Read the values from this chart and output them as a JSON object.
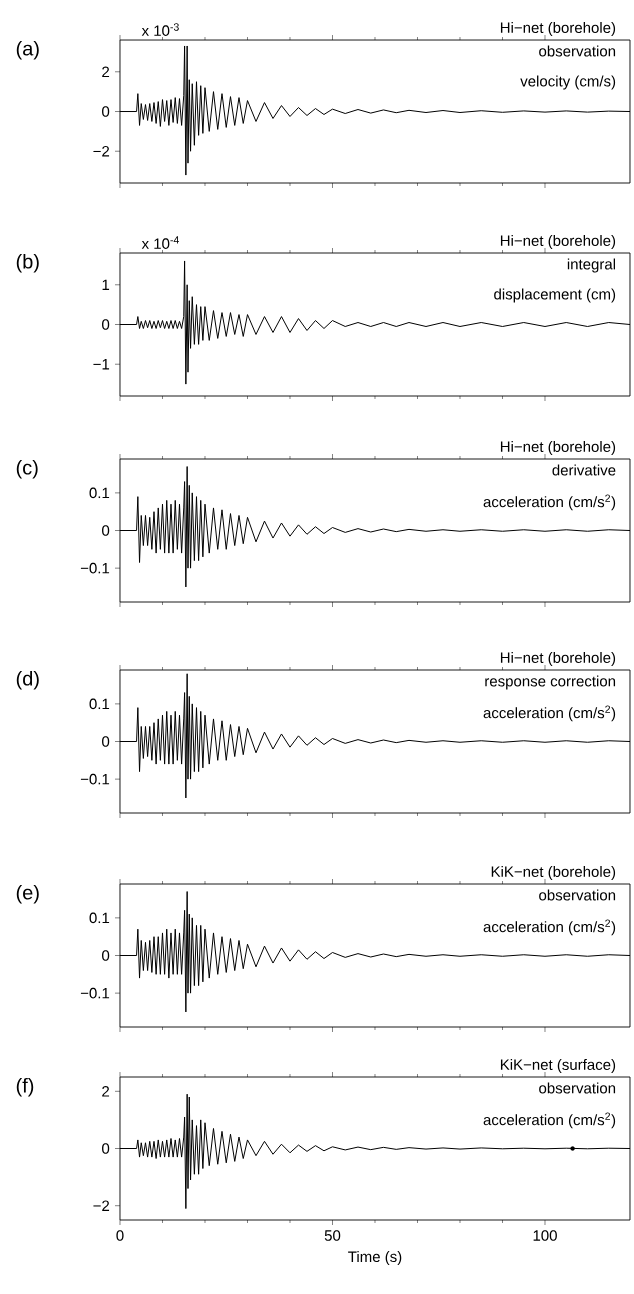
{
  "chart_data": [
    {
      "type": "line",
      "title": "(a)",
      "subtitle": "Hi−net (borehole)",
      "ylabel": "x 10$^{-3}$",
      "annotations": [
        "observation",
        "velocity (cm/s)"
      ],
      "xlim": [
        0,
        120
      ],
      "xticks": [
        0,
        50,
        100
      ],
      "ylim": [
        -3.6,
        3.6
      ],
      "yticks": [
        {
          "value": -2,
          "label": "−2"
        },
        0,
        2
      ],
      "tick_labels": "y",
      "x": [
        0,
        3.9,
        4.2,
        4.6,
        5,
        5.5,
        6,
        6.5,
        7,
        7.5,
        8,
        8.5,
        9,
        9.5,
        10,
        10.5,
        11,
        11.5,
        12,
        12.5,
        13,
        13.5,
        14,
        14.5,
        15,
        15.2,
        15.5,
        15.8,
        16,
        16.3,
        16.6,
        17,
        17.5,
        18,
        18.5,
        19,
        19.5,
        20,
        21,
        22,
        23,
        24,
        25,
        26,
        27,
        28,
        29,
        30,
        32,
        34,
        36,
        38,
        40,
        42,
        44,
        46,
        48,
        50,
        53,
        56,
        59,
        62,
        65,
        68,
        72,
        76,
        80,
        85,
        90,
        95,
        100,
        105,
        110,
        115,
        120
      ],
      "series": [
        {
          "color": "#000000",
          "values": [
            0,
            0,
            0.9,
            -0.7,
            0.4,
            -0.4,
            0.35,
            -0.45,
            0.4,
            -0.5,
            0.45,
            -0.6,
            0.5,
            -0.75,
            0.6,
            -0.5,
            0.55,
            -0.7,
            0.6,
            -0.55,
            0.7,
            -0.6,
            0.65,
            -0.7,
            0.8,
            3.3,
            -3.2,
            3.3,
            -2.6,
            1.6,
            -2.0,
            1.4,
            -1.7,
            1.5,
            -1.2,
            1.3,
            -1.1,
            1.2,
            -1.0,
            1.0,
            -0.9,
            0.9,
            -0.8,
            0.75,
            -0.7,
            0.7,
            -0.6,
            0.55,
            -0.5,
            0.45,
            -0.35,
            0.3,
            -0.25,
            0.2,
            -0.2,
            0.15,
            -0.15,
            0.12,
            -0.1,
            0.1,
            -0.08,
            0.08,
            -0.06,
            0.06,
            -0.05,
            0.05,
            -0.05,
            0.04,
            -0.04,
            0.03,
            -0.03,
            0.03,
            -0.03,
            0.02,
            0
          ]
        }
      ]
    },
    {
      "type": "line",
      "title": "(b)",
      "subtitle": "Hi−net (borehole)",
      "ylabel": "x 10$^{-4}$",
      "annotations": [
        "integral",
        "displacement (cm)"
      ],
      "xlim": [
        0,
        120
      ],
      "xticks": [
        0,
        50,
        100
      ],
      "ylim": [
        -1.8,
        1.8
      ],
      "yticks": [
        {
          "value": -1,
          "label": "−1"
        },
        0,
        1
      ],
      "tick_labels": "y",
      "x": [
        0,
        3.9,
        4.2,
        4.6,
        5,
        5.5,
        6,
        6.5,
        7,
        7.5,
        8,
        8.5,
        9,
        9.5,
        10,
        10.5,
        11,
        11.5,
        12,
        12.5,
        13,
        13.5,
        14,
        14.5,
        15,
        15.2,
        15.5,
        15.8,
        16,
        16.3,
        16.6,
        17,
        17.5,
        18,
        18.5,
        19,
        19.5,
        20,
        21,
        22,
        23,
        24,
        25,
        26,
        27,
        28,
        29,
        30,
        32,
        34,
        36,
        38,
        40,
        42,
        44,
        46,
        48,
        50,
        53,
        56,
        59,
        62,
        65,
        68,
        72,
        76,
        80,
        85,
        90,
        95,
        100,
        105,
        110,
        115,
        120
      ],
      "series": [
        {
          "color": "#000000",
          "values": [
            0,
            0,
            0.2,
            -0.1,
            0.08,
            -0.1,
            0.1,
            -0.08,
            0.1,
            -0.1,
            0.08,
            -0.1,
            0.1,
            -0.08,
            0.1,
            -0.1,
            0.08,
            -0.1,
            0.1,
            -0.1,
            0.1,
            -0.1,
            0.08,
            -0.1,
            0.2,
            1.6,
            -1.5,
            1.0,
            -1.2,
            0.6,
            -0.6,
            0.7,
            -0.5,
            0.5,
            -0.5,
            0.45,
            -0.4,
            0.45,
            -0.4,
            0.35,
            -0.35,
            0.3,
            -0.3,
            0.3,
            -0.25,
            0.25,
            -0.3,
            0.25,
            -0.25,
            0.2,
            -0.2,
            0.2,
            -0.2,
            0.15,
            -0.15,
            0.1,
            -0.1,
            0.1,
            -0.05,
            0.05,
            -0.05,
            0.05,
            -0.05,
            0.05,
            -0.05,
            0.05,
            -0.05,
            0.05,
            -0.05,
            0.05,
            -0.05,
            0.05,
            -0.05,
            0.05,
            0
          ]
        }
      ]
    },
    {
      "type": "line",
      "title": "(c)",
      "subtitle": "Hi−net (borehole)",
      "annotations": [
        "derivative",
        "acceleration (cm/s$^{2}$)"
      ],
      "xlim": [
        0,
        120
      ],
      "xticks": [
        0,
        50,
        100
      ],
      "ylim": [
        -0.19,
        0.19
      ],
      "yticks": [
        {
          "value": -0.1,
          "label": "−0.1"
        },
        0,
        0.1
      ],
      "tick_labels": "y",
      "x": [
        0,
        3.9,
        4.2,
        4.6,
        5,
        5.5,
        6,
        6.5,
        7,
        7.5,
        8,
        8.5,
        9,
        9.5,
        10,
        10.5,
        11,
        11.5,
        12,
        12.5,
        13,
        13.5,
        14,
        14.5,
        15,
        15.2,
        15.5,
        15.8,
        16,
        16.3,
        16.6,
        17,
        17.5,
        18,
        18.5,
        19,
        19.5,
        20,
        21,
        22,
        23,
        24,
        25,
        26,
        27,
        28,
        29,
        30,
        32,
        34,
        36,
        38,
        40,
        42,
        44,
        46,
        48,
        50,
        53,
        56,
        59,
        62,
        65,
        68,
        72,
        76,
        80,
        85,
        90,
        95,
        100,
        105,
        110,
        115,
        120
      ],
      "series": [
        {
          "color": "#000000",
          "values": [
            0,
            0,
            0.09,
            -0.085,
            0.04,
            -0.04,
            0.04,
            -0.04,
            0.035,
            -0.05,
            0.05,
            -0.06,
            0.06,
            -0.05,
            0.07,
            -0.06,
            0.08,
            -0.06,
            0.07,
            -0.06,
            0.08,
            -0.05,
            0.07,
            -0.06,
            0.06,
            0.13,
            -0.15,
            0.17,
            -0.1,
            0.12,
            -0.1,
            0.1,
            -0.08,
            0.09,
            -0.08,
            0.08,
            -0.07,
            0.07,
            -0.06,
            0.06,
            -0.05,
            0.055,
            -0.05,
            0.045,
            -0.04,
            0.04,
            -0.035,
            0.035,
            -0.03,
            0.025,
            -0.02,
            0.02,
            -0.015,
            0.015,
            -0.01,
            0.01,
            -0.008,
            0.008,
            -0.005,
            0.005,
            -0.004,
            0.004,
            -0.003,
            0.003,
            -0.002,
            0.002,
            -0.002,
            0.002,
            -0.002,
            0.002,
            -0.002,
            0.002,
            -0.002,
            0.002,
            0
          ]
        }
      ]
    },
    {
      "type": "line",
      "title": "(d)",
      "subtitle": "Hi−net (borehole)",
      "annotations": [
        "response correction",
        "acceleration (cm/s$^{2}$)"
      ],
      "xlim": [
        0,
        120
      ],
      "xticks": [
        0,
        50,
        100
      ],
      "ylim": [
        -0.19,
        0.19
      ],
      "yticks": [
        {
          "value": -0.1,
          "label": "−0.1"
        },
        0,
        0.1
      ],
      "tick_labels": "y",
      "x": [
        0,
        3.9,
        4.2,
        4.6,
        5,
        5.5,
        6,
        6.5,
        7,
        7.5,
        8,
        8.5,
        9,
        9.5,
        10,
        10.5,
        11,
        11.5,
        12,
        12.5,
        13,
        13.5,
        14,
        14.5,
        15,
        15.2,
        15.5,
        15.8,
        16,
        16.3,
        16.6,
        17,
        17.5,
        18,
        18.5,
        19,
        19.5,
        20,
        21,
        22,
        23,
        24,
        25,
        26,
        27,
        28,
        29,
        30,
        32,
        34,
        36,
        38,
        40,
        42,
        44,
        46,
        48,
        50,
        53,
        56,
        59,
        62,
        65,
        68,
        72,
        76,
        80,
        85,
        90,
        95,
        100,
        105,
        110,
        115,
        120
      ],
      "series": [
        {
          "color": "#000000",
          "values": [
            0,
            0,
            0.09,
            -0.08,
            0.04,
            -0.045,
            0.04,
            -0.04,
            0.04,
            -0.05,
            0.05,
            -0.06,
            0.06,
            -0.05,
            0.07,
            -0.06,
            0.08,
            -0.06,
            0.07,
            -0.06,
            0.08,
            -0.05,
            0.07,
            -0.06,
            0.06,
            0.13,
            -0.15,
            0.18,
            -0.1,
            0.12,
            -0.1,
            0.1,
            -0.08,
            0.09,
            -0.08,
            0.08,
            -0.07,
            0.07,
            -0.06,
            0.06,
            -0.05,
            0.055,
            -0.05,
            0.045,
            -0.04,
            0.04,
            -0.035,
            0.035,
            -0.03,
            0.025,
            -0.02,
            0.02,
            -0.015,
            0.015,
            -0.01,
            0.01,
            -0.008,
            0.008,
            -0.005,
            0.005,
            -0.004,
            0.004,
            -0.003,
            0.003,
            -0.002,
            0.002,
            -0.002,
            0.002,
            -0.002,
            0.002,
            -0.002,
            0.002,
            -0.002,
            0.002,
            0
          ]
        }
      ]
    },
    {
      "type": "line",
      "title": "(e)",
      "subtitle": "KiK−net (borehole)",
      "annotations": [
        "observation",
        "acceleration (cm/s$^{2}$)"
      ],
      "xlim": [
        0,
        120
      ],
      "xticks": [
        0,
        50,
        100
      ],
      "ylim": [
        -0.19,
        0.19
      ],
      "yticks": [
        {
          "value": -0.1,
          "label": "−0.1"
        },
        0,
        0.1
      ],
      "tick_labels": "y",
      "x": [
        0,
        3.9,
        4.2,
        4.6,
        5,
        5.5,
        6,
        6.5,
        7,
        7.5,
        8,
        8.5,
        9,
        9.5,
        10,
        10.5,
        11,
        11.5,
        12,
        12.5,
        13,
        13.5,
        14,
        14.5,
        15,
        15.2,
        15.5,
        15.8,
        16,
        16.3,
        16.6,
        17,
        17.5,
        18,
        18.5,
        19,
        19.5,
        20,
        21,
        22,
        23,
        24,
        25,
        26,
        27,
        28,
        29,
        30,
        32,
        34,
        36,
        38,
        40,
        42,
        44,
        46,
        48,
        50,
        53,
        56,
        59,
        62,
        65,
        68,
        72,
        76,
        80,
        85,
        90,
        95,
        100,
        105,
        110,
        115,
        120
      ],
      "series": [
        {
          "color": "#000000",
          "values": [
            0,
            0,
            0.07,
            -0.06,
            0.04,
            -0.04,
            0.035,
            -0.04,
            0.04,
            -0.045,
            0.05,
            -0.05,
            0.05,
            -0.05,
            0.06,
            -0.05,
            0.07,
            -0.06,
            0.06,
            -0.05,
            0.07,
            -0.05,
            0.06,
            -0.05,
            0.06,
            0.12,
            -0.15,
            0.17,
            -0.1,
            0.11,
            -0.1,
            0.1,
            -0.08,
            0.08,
            -0.08,
            0.08,
            -0.07,
            0.07,
            -0.06,
            0.06,
            -0.05,
            0.05,
            -0.045,
            0.045,
            -0.04,
            0.04,
            -0.035,
            0.03,
            -0.03,
            0.025,
            -0.02,
            0.02,
            -0.015,
            0.015,
            -0.01,
            0.01,
            -0.008,
            0.008,
            -0.005,
            0.005,
            -0.004,
            0.004,
            -0.003,
            0.003,
            -0.002,
            0.002,
            -0.002,
            0.002,
            -0.002,
            0.002,
            -0.002,
            0.002,
            -0.002,
            0.002,
            0
          ]
        }
      ]
    },
    {
      "type": "line",
      "title": "(f)",
      "subtitle": "KiK−net (surface)",
      "annotations": [
        "observation",
        "acceleration (cm/s$^{2}$)"
      ],
      "xlabel": "Time (s)",
      "xlim": [
        0,
        120
      ],
      "xticks": [
        0,
        50,
        100
      ],
      "ylim": [
        -2.5,
        2.5
      ],
      "yticks": [
        {
          "value": -2,
          "label": "−2"
        },
        0,
        2
      ],
      "x": [
        0,
        3.9,
        4.2,
        4.6,
        5,
        5.5,
        6,
        6.5,
        7,
        7.5,
        8,
        8.5,
        9,
        9.5,
        10,
        10.5,
        11,
        11.5,
        12,
        12.5,
        13,
        13.5,
        14,
        14.5,
        15,
        15.2,
        15.5,
        15.8,
        16,
        16.3,
        16.6,
        17,
        17.5,
        18,
        18.5,
        19,
        19.5,
        20,
        21,
        22,
        23,
        24,
        25,
        26,
        27,
        28,
        29,
        30,
        32,
        34,
        36,
        38,
        40,
        42,
        44,
        46,
        48,
        50,
        53,
        56,
        59,
        62,
        65,
        68,
        72,
        76,
        80,
        85,
        90,
        95,
        100,
        105,
        110,
        115,
        120
      ],
      "series": [
        {
          "color": "#000000",
          "values": [
            0,
            0,
            0.3,
            -0.3,
            0.2,
            -0.25,
            0.2,
            -0.3,
            0.25,
            -0.3,
            0.25,
            -0.35,
            0.3,
            -0.3,
            0.25,
            -0.3,
            0.3,
            -0.3,
            0.35,
            -0.3,
            0.3,
            -0.3,
            0.35,
            -0.3,
            0.4,
            1.1,
            -2.1,
            1.9,
            -1.4,
            1.8,
            -1.1,
            1.0,
            -0.9,
            0.8,
            -0.9,
            1.0,
            -0.7,
            0.9,
            -0.6,
            0.7,
            -0.55,
            0.6,
            -0.5,
            0.5,
            -0.45,
            0.4,
            -0.35,
            0.3,
            -0.25,
            0.25,
            -0.2,
            0.15,
            -0.15,
            0.12,
            -0.1,
            0.1,
            -0.08,
            0.06,
            -0.05,
            0.05,
            -0.04,
            0.04,
            -0.03,
            0.03,
            -0.02,
            0.02,
            -0.02,
            0.02,
            -0.01,
            0.01,
            -0.01,
            0.01,
            -0.01,
            0.01,
            0
          ]
        },
        {
          "type": "scatter",
          "marker": "circle",
          "color": "#000000",
          "x": [
            106.5
          ],
          "values": [
            0
          ]
        }
      ]
    }
  ]
}
